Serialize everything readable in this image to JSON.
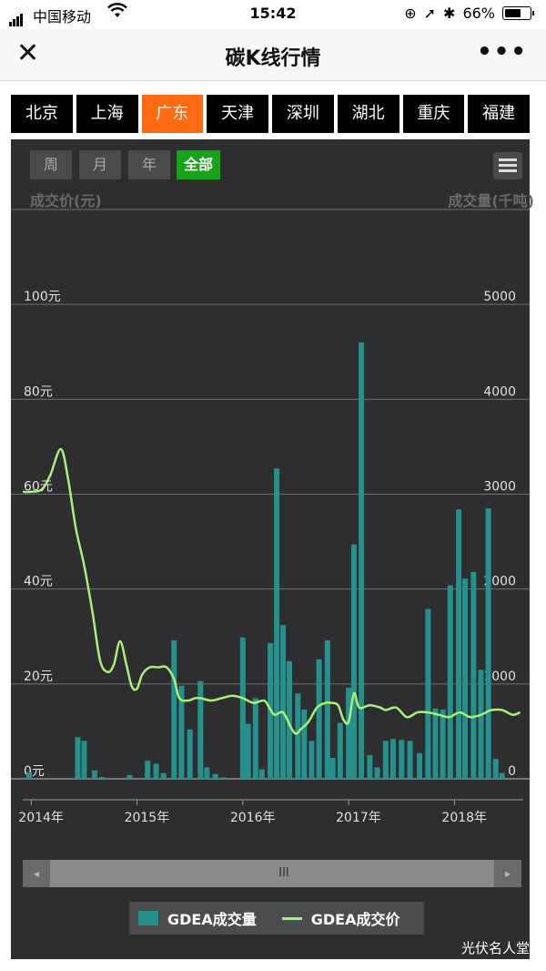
{
  "status_bar": {
    "carrier": "中国移动",
    "time": "15:42",
    "battery": "66%",
    "battery_level": 0.66
  },
  "navbar": {
    "title": "碳K线行情",
    "close_icon": "close-icon",
    "more_icon": "more-icon"
  },
  "regions": [
    "北京",
    "上海",
    "广东",
    "天津",
    "深圳",
    "湖北",
    "重庆",
    "福建"
  ],
  "active_region_index": 2,
  "periods": [
    "周",
    "月",
    "年",
    "全部"
  ],
  "active_period_index": 3,
  "chart_data": {
    "type": "bar",
    "left_axis_title": "成交价(元)",
    "right_axis_title": "成交量(千吨)",
    "left_ticks": [
      "0元",
      "20元",
      "40元",
      "60元",
      "80元",
      "100元"
    ],
    "right_ticks": [
      "0",
      "1000",
      "2000",
      "3000",
      "4000",
      "5000"
    ],
    "left_range": [
      0,
      120
    ],
    "right_range": [
      0,
      6000
    ],
    "x_ticks": [
      "2014年",
      "2015年",
      "2016年",
      "2017年",
      "2018年"
    ],
    "x_range": [
      2013.92,
      2018.65
    ],
    "series": [
      {
        "name": "GDEA成交量",
        "type": "bar",
        "color": "#26908c",
        "x": [
          2013.98,
          2014.44,
          2014.5,
          2014.6,
          2014.67,
          2014.93,
          2015.1,
          2015.18,
          2015.25,
          2015.35,
          2015.42,
          2015.5,
          2015.6,
          2015.66,
          2015.74,
          2015.82,
          2016.0,
          2016.05,
          2016.12,
          2016.18,
          2016.26,
          2016.32,
          2016.38,
          2016.44,
          2016.52,
          2016.58,
          2016.65,
          2016.72,
          2016.8,
          2016.85,
          2016.92,
          2017.0,
          2017.05,
          2017.12,
          2017.2,
          2017.27,
          2017.35,
          2017.42,
          2017.5,
          2017.58,
          2017.67,
          2017.75,
          2017.82,
          2017.89,
          2017.96,
          2018.04,
          2018.1,
          2018.18,
          2018.25,
          2018.32,
          2018.39,
          2018.45
        ],
        "values": [
          70,
          440,
          400,
          90,
          20,
          40,
          190,
          160,
          60,
          1460,
          980,
          520,
          1030,
          120,
          50,
          15,
          1490,
          580,
          850,
          100,
          1430,
          3270,
          1620,
          1240,
          900,
          730,
          400,
          1260,
          1460,
          220,
          590,
          960,
          2470,
          4600,
          250,
          120,
          400,
          420,
          410,
          400,
          270,
          1790,
          740,
          730,
          2040,
          2840,
          2110,
          2180,
          1150,
          2850,
          210,
          60
        ]
      },
      {
        "name": "GDEA成交价",
        "type": "line",
        "color": "#a8f07a",
        "x": [
          2013.92,
          2014.0,
          2014.1,
          2014.18,
          2014.28,
          2014.35,
          2014.42,
          2014.5,
          2014.58,
          2014.65,
          2014.72,
          2014.78,
          2014.84,
          2014.9,
          2014.95,
          2015.0,
          2015.05,
          2015.12,
          2015.2,
          2015.28,
          2015.35,
          2015.4,
          2015.48,
          2015.55,
          2015.6,
          2015.7,
          2015.8,
          2015.9,
          2016.0,
          2016.1,
          2016.2,
          2016.25,
          2016.3,
          2016.38,
          2016.45,
          2016.5,
          2016.55,
          2016.62,
          2016.7,
          2016.78,
          2016.84,
          2016.9,
          2016.95,
          2017.0,
          2017.05,
          2017.1,
          2017.2,
          2017.3,
          2017.35,
          2017.45,
          2017.55,
          2017.65,
          2017.75,
          2017.85,
          2017.95,
          2018.05,
          2018.15,
          2018.25,
          2018.3,
          2018.35,
          2018.45,
          2018.55,
          2018.62
        ],
        "values": [
          60.5,
          60.5,
          61.0,
          64.0,
          69.5,
          63.0,
          53.0,
          45.0,
          35.0,
          25.0,
          22.5,
          24.0,
          29.0,
          24.0,
          19.5,
          19.0,
          22.0,
          23.5,
          23.5,
          23.5,
          21.0,
          17.0,
          16.5,
          17.0,
          17.0,
          16.5,
          17.0,
          17.5,
          17.0,
          16.0,
          16.5,
          15.0,
          13.5,
          14.0,
          11.0,
          9.5,
          10.5,
          12.0,
          15.0,
          16.0,
          16.0,
          15.5,
          12.5,
          12.0,
          18.0,
          15.0,
          15.5,
          15.0,
          14.5,
          15.0,
          13.0,
          14.0,
          14.0,
          13.5,
          13.0,
          14.0,
          13.0,
          13.5,
          14.0,
          14.5,
          14.5,
          13.5,
          14.0
        ]
      }
    ]
  },
  "legend": {
    "volume_label": "GDEA成交量",
    "price_label": "GDEA成交价"
  },
  "scrollbar": {
    "left_arrow": "◂",
    "right_arrow": "▸",
    "thumb_grip": "III"
  },
  "watermark": "光伏名人堂"
}
